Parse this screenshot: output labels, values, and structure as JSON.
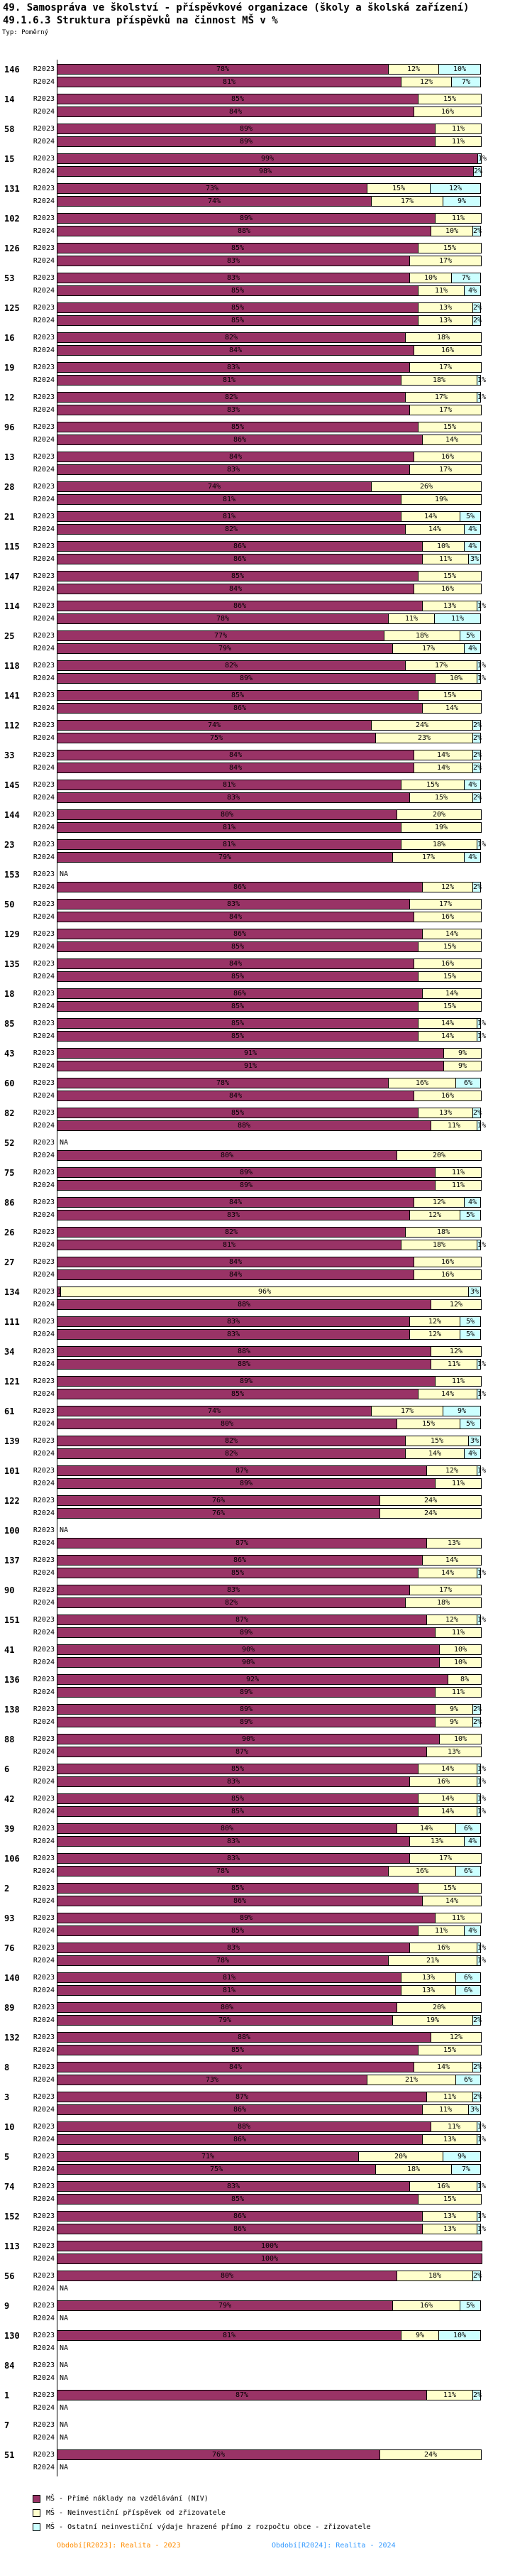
{
  "header": {
    "title": "49. Samospráva ve školství - příspěvkové organizace (školy a školská zařízení)",
    "subtitle": "49.1.6.3 Struktura příspěvků na činnost MŠ v %",
    "type_label": "Typ: Poměrný"
  },
  "colors": {
    "segment_direct": "#993366",
    "segment_contribution": "#FFFFCC",
    "segment_other": "#CCFFFF",
    "bar_border": "#000000",
    "footer_2023": "#FF8C00",
    "footer_2024": "#3399FF"
  },
  "legend": {
    "items": [
      {
        "name": "direct",
        "label": "MŠ - Přímé náklady na vzdělávání (NIV)",
        "color": "#993366"
      },
      {
        "name": "contribution",
        "label": "MŠ - Neinvestiční příspěvek od zřizovatele",
        "color": "#FFFFCC"
      },
      {
        "name": "other",
        "label": "MŠ - Ostatní neinvestiční výdaje hrazené přímo z rozpočtu obce - zřizovatele",
        "color": "#CCFFFF"
      }
    ]
  },
  "footer": {
    "period_2023": "Období[R2023]: Realita - 2023",
    "period_2024": "Období[R2024]: Realita - 2024"
  },
  "chart_data": {
    "type": "bar",
    "orientation": "horizontal",
    "stacked": true,
    "unit": "%",
    "xlim": [
      0,
      100
    ],
    "na_text": "NA",
    "series_names": [
      "R2023",
      "R2024"
    ],
    "segment_names": [
      "MŠ - Přímé náklady na vzdělávání (NIV)",
      "MŠ - Neinvestiční příspěvek od zřizovatele",
      "MŠ - Ostatní neinvestiční výdaje hrazené přímo z rozpočtu obce - zřizovatele"
    ],
    "segment_colors": [
      "#993366",
      "#FFFFCC",
      "#CCFFFF"
    ],
    "groups": [
      {
        "id": "146",
        "values": {
          "R2023": [
            78,
            12,
            10
          ],
          "R2024": [
            81,
            12,
            7
          ]
        }
      },
      {
        "id": "14",
        "values": {
          "R2023": [
            85,
            15,
            0
          ],
          "R2024": [
            84,
            16,
            0
          ]
        }
      },
      {
        "id": "58",
        "values": {
          "R2023": [
            89,
            11,
            0
          ],
          "R2024": [
            89,
            11,
            0
          ]
        }
      },
      {
        "id": "15",
        "values": {
          "R2023": [
            99,
            0,
            1
          ],
          "R2024": [
            98,
            0,
            2
          ]
        }
      },
      {
        "id": "131",
        "values": {
          "R2023": [
            73,
            15,
            12
          ],
          "R2024": [
            74,
            17,
            9
          ]
        }
      },
      {
        "id": "102",
        "values": {
          "R2023": [
            89,
            11,
            0
          ],
          "R2024": [
            88,
            10,
            2
          ]
        }
      },
      {
        "id": "126",
        "values": {
          "R2023": [
            85,
            15,
            0
          ],
          "R2024": [
            83,
            17,
            0
          ]
        }
      },
      {
        "id": "53",
        "values": {
          "R2023": [
            83,
            10,
            7
          ],
          "R2024": [
            85,
            11,
            4
          ]
        }
      },
      {
        "id": "125",
        "values": {
          "R2023": [
            85,
            13,
            2
          ],
          "R2024": [
            85,
            13,
            2
          ]
        }
      },
      {
        "id": "16",
        "values": {
          "R2023": [
            82,
            18,
            0
          ],
          "R2024": [
            84,
            16,
            0
          ]
        }
      },
      {
        "id": "19",
        "values": {
          "R2023": [
            83,
            17,
            0
          ],
          "R2024": [
            81,
            18,
            1
          ]
        }
      },
      {
        "id": "12",
        "values": {
          "R2023": [
            82,
            17,
            1
          ],
          "R2024": [
            83,
            17,
            0
          ]
        }
      },
      {
        "id": "96",
        "values": {
          "R2023": [
            85,
            15,
            0
          ],
          "R2024": [
            86,
            14,
            0
          ]
        }
      },
      {
        "id": "13",
        "values": {
          "R2023": [
            84,
            16,
            0
          ],
          "R2024": [
            83,
            17,
            0
          ]
        }
      },
      {
        "id": "28",
        "values": {
          "R2023": [
            74,
            26,
            0
          ],
          "R2024": [
            81,
            19,
            0
          ]
        }
      },
      {
        "id": "21",
        "values": {
          "R2023": [
            81,
            14,
            5
          ],
          "R2024": [
            82,
            14,
            4
          ]
        }
      },
      {
        "id": "115",
        "values": {
          "R2023": [
            86,
            10,
            4
          ],
          "R2024": [
            86,
            11,
            3
          ]
        }
      },
      {
        "id": "147",
        "values": {
          "R2023": [
            85,
            15,
            0
          ],
          "R2024": [
            84,
            16,
            0
          ]
        }
      },
      {
        "id": "114",
        "values": {
          "R2023": [
            86,
            13,
            1
          ],
          "R2024": [
            78,
            11,
            11
          ]
        }
      },
      {
        "id": "25",
        "values": {
          "R2023": [
            77,
            18,
            5
          ],
          "R2024": [
            79,
            17,
            4
          ]
        }
      },
      {
        "id": "118",
        "values": {
          "R2023": [
            82,
            17,
            1
          ],
          "R2024": [
            89,
            10,
            1
          ]
        }
      },
      {
        "id": "141",
        "values": {
          "R2023": [
            85,
            15,
            0
          ],
          "R2024": [
            86,
            14,
            0
          ]
        }
      },
      {
        "id": "112",
        "values": {
          "R2023": [
            74,
            24,
            2
          ],
          "R2024": [
            75,
            23,
            2
          ]
        }
      },
      {
        "id": "33",
        "values": {
          "R2023": [
            84,
            14,
            2
          ],
          "R2024": [
            84,
            14,
            2
          ]
        }
      },
      {
        "id": "145",
        "values": {
          "R2023": [
            81,
            15,
            4
          ],
          "R2024": [
            83,
            15,
            2
          ]
        }
      },
      {
        "id": "144",
        "values": {
          "R2023": [
            80,
            20,
            0
          ],
          "R2024": [
            81,
            19,
            0
          ]
        }
      },
      {
        "id": "23",
        "values": {
          "R2023": [
            81,
            18,
            1
          ],
          "R2024": [
            79,
            17,
            4
          ]
        }
      },
      {
        "id": "153",
        "values": {
          "R2023": null,
          "R2024": [
            86,
            12,
            2
          ]
        }
      },
      {
        "id": "50",
        "values": {
          "R2023": [
            83,
            17,
            0
          ],
          "R2024": [
            84,
            16,
            0
          ]
        }
      },
      {
        "id": "129",
        "values": {
          "R2023": [
            86,
            14,
            0
          ],
          "R2024": [
            85,
            15,
            0
          ]
        }
      },
      {
        "id": "135",
        "values": {
          "R2023": [
            84,
            16,
            0
          ],
          "R2024": [
            85,
            15,
            0
          ]
        }
      },
      {
        "id": "18",
        "values": {
          "R2023": [
            86,
            14,
            0
          ],
          "R2024": [
            85,
            15,
            0
          ]
        }
      },
      {
        "id": "85",
        "values": {
          "R2023": [
            85,
            14,
            1
          ],
          "R2024": [
            85,
            14,
            1
          ]
        }
      },
      {
        "id": "43",
        "values": {
          "R2023": [
            91,
            9,
            0
          ],
          "R2024": [
            91,
            9,
            0
          ]
        }
      },
      {
        "id": "60",
        "values": {
          "R2023": [
            78,
            16,
            6
          ],
          "R2024": [
            84,
            16,
            0
          ]
        }
      },
      {
        "id": "82",
        "values": {
          "R2023": [
            85,
            13,
            2
          ],
          "R2024": [
            88,
            11,
            1
          ]
        }
      },
      {
        "id": "52",
        "values": {
          "R2023": null,
          "R2024": [
            80,
            20,
            0
          ]
        }
      },
      {
        "id": "75",
        "values": {
          "R2023": [
            89,
            11,
            0
          ],
          "R2024": [
            89,
            11,
            0
          ]
        }
      },
      {
        "id": "86",
        "values": {
          "R2023": [
            84,
            12,
            4
          ],
          "R2024": [
            83,
            12,
            5
          ]
        }
      },
      {
        "id": "26",
        "values": {
          "R2023": [
            82,
            18,
            0
          ],
          "R2024": [
            81,
            18,
            1
          ]
        }
      },
      {
        "id": "27",
        "values": {
          "R2023": [
            84,
            16,
            0
          ],
          "R2024": [
            84,
            16,
            0
          ]
        }
      },
      {
        "id": "134",
        "values": {
          "R2023": [
            1,
            96,
            3
          ],
          "R2024": [
            88,
            12,
            0
          ]
        }
      },
      {
        "id": "111",
        "values": {
          "R2023": [
            83,
            12,
            5
          ],
          "R2024": [
            83,
            12,
            5
          ]
        }
      },
      {
        "id": "34",
        "values": {
          "R2023": [
            88,
            12,
            0
          ],
          "R2024": [
            88,
            11,
            1
          ]
        }
      },
      {
        "id": "121",
        "values": {
          "R2023": [
            89,
            11,
            0
          ],
          "R2024": [
            85,
            14,
            1
          ]
        }
      },
      {
        "id": "61",
        "values": {
          "R2023": [
            74,
            17,
            9
          ],
          "R2024": [
            80,
            15,
            5
          ]
        }
      },
      {
        "id": "139",
        "values": {
          "R2023": [
            82,
            15,
            3
          ],
          "R2024": [
            82,
            14,
            4
          ]
        }
      },
      {
        "id": "101",
        "values": {
          "R2023": [
            87,
            12,
            1
          ],
          "R2024": [
            89,
            11,
            0
          ]
        }
      },
      {
        "id": "122",
        "values": {
          "R2023": [
            76,
            24,
            0
          ],
          "R2024": [
            76,
            24,
            0
          ]
        }
      },
      {
        "id": "100",
        "values": {
          "R2023": null,
          "R2024": [
            87,
            13,
            0
          ]
        }
      },
      {
        "id": "137",
        "values": {
          "R2023": [
            86,
            14,
            0
          ],
          "R2024": [
            85,
            14,
            1
          ]
        }
      },
      {
        "id": "90",
        "values": {
          "R2023": [
            83,
            17,
            0
          ],
          "R2024": [
            82,
            18,
            0
          ]
        }
      },
      {
        "id": "151",
        "values": {
          "R2023": [
            87,
            12,
            1
          ],
          "R2024": [
            89,
            11,
            0
          ]
        }
      },
      {
        "id": "41",
        "values": {
          "R2023": [
            90,
            10,
            0
          ],
          "R2024": [
            90,
            10,
            0
          ]
        }
      },
      {
        "id": "136",
        "values": {
          "R2023": [
            92,
            8,
            0
          ],
          "R2024": [
            89,
            11,
            0
          ]
        }
      },
      {
        "id": "138",
        "values": {
          "R2023": [
            89,
            9,
            2
          ],
          "R2024": [
            89,
            9,
            2
          ]
        }
      },
      {
        "id": "88",
        "values": {
          "R2023": [
            90,
            10,
            0
          ],
          "R2024": [
            87,
            13,
            0
          ]
        }
      },
      {
        "id": "6",
        "values": {
          "R2023": [
            85,
            14,
            1
          ],
          "R2024": [
            83,
            16,
            1
          ]
        }
      },
      {
        "id": "42",
        "values": {
          "R2023": [
            85,
            14,
            1
          ],
          "R2024": [
            85,
            14,
            1
          ]
        }
      },
      {
        "id": "39",
        "values": {
          "R2023": [
            80,
            14,
            6
          ],
          "R2024": [
            83,
            13,
            4
          ]
        }
      },
      {
        "id": "106",
        "values": {
          "R2023": [
            83,
            17,
            0
          ],
          "R2024": [
            78,
            16,
            6
          ]
        }
      },
      {
        "id": "2",
        "values": {
          "R2023": [
            85,
            15,
            0
          ],
          "R2024": [
            86,
            14,
            0
          ]
        }
      },
      {
        "id": "93",
        "values": {
          "R2023": [
            89,
            11,
            0
          ],
          "R2024": [
            85,
            11,
            4
          ]
        }
      },
      {
        "id": "76",
        "values": {
          "R2023": [
            83,
            16,
            1
          ],
          "R2024": [
            78,
            21,
            1
          ]
        }
      },
      {
        "id": "140",
        "values": {
          "R2023": [
            81,
            13,
            6
          ],
          "R2024": [
            81,
            13,
            6
          ]
        }
      },
      {
        "id": "89",
        "values": {
          "R2023": [
            80,
            20,
            0
          ],
          "R2024": [
            79,
            19,
            2
          ]
        }
      },
      {
        "id": "132",
        "values": {
          "R2023": [
            88,
            12,
            0
          ],
          "R2024": [
            85,
            15,
            0
          ]
        }
      },
      {
        "id": "8",
        "values": {
          "R2023": [
            84,
            14,
            2
          ],
          "R2024": [
            73,
            21,
            6
          ]
        }
      },
      {
        "id": "3",
        "values": {
          "R2023": [
            87,
            11,
            2
          ],
          "R2024": [
            86,
            11,
            3
          ]
        }
      },
      {
        "id": "10",
        "values": {
          "R2023": [
            88,
            11,
            1
          ],
          "R2024": [
            86,
            13,
            1
          ]
        }
      },
      {
        "id": "5",
        "values": {
          "R2023": [
            71,
            20,
            9
          ],
          "R2024": [
            75,
            18,
            7
          ]
        }
      },
      {
        "id": "74",
        "values": {
          "R2023": [
            83,
            16,
            1
          ],
          "R2024": [
            85,
            15,
            0
          ]
        }
      },
      {
        "id": "152",
        "values": {
          "R2023": [
            86,
            13,
            1
          ],
          "R2024": [
            86,
            13,
            1
          ]
        }
      },
      {
        "id": "113",
        "values": {
          "R2023": [
            100,
            0,
            0
          ],
          "R2024": [
            100,
            0,
            0
          ]
        }
      },
      {
        "id": "56",
        "values": {
          "R2023": [
            80,
            18,
            2
          ],
          "R2024": null
        }
      },
      {
        "id": "9",
        "values": {
          "R2023": [
            79,
            16,
            5
          ],
          "R2024": null
        }
      },
      {
        "id": "130",
        "values": {
          "R2023": [
            81,
            9,
            10
          ],
          "R2024": null
        }
      },
      {
        "id": "84",
        "values": {
          "R2023": null,
          "R2024": null
        }
      },
      {
        "id": "1",
        "values": {
          "R2023": [
            87,
            11,
            2
          ],
          "R2024": null
        }
      },
      {
        "id": "7",
        "values": {
          "R2023": null,
          "R2024": null
        }
      },
      {
        "id": "51",
        "values": {
          "R2023": [
            76,
            24,
            0
          ],
          "R2024": null
        }
      }
    ]
  }
}
